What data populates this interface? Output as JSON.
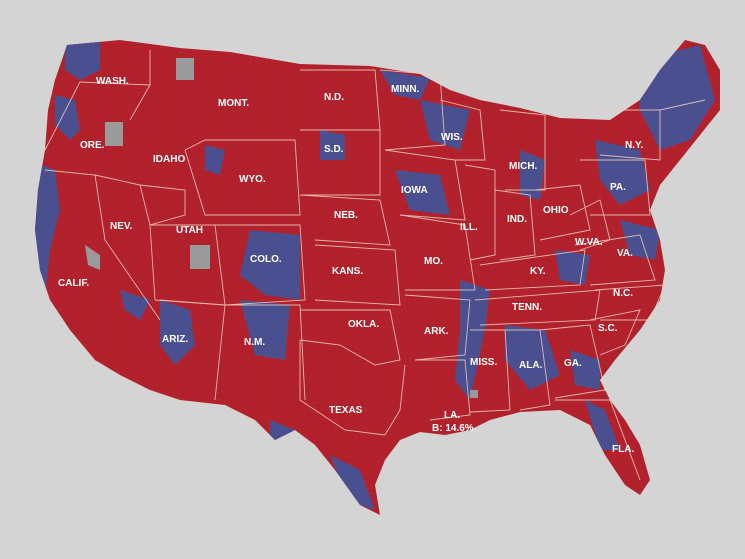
{
  "map": {
    "colors": {
      "background": "#d4d4d4",
      "majority": "#b3222c",
      "minority": "#4a4f8f",
      "no_data": "#9a9a9a",
      "border": "#f0d0c0"
    },
    "state_labels": {
      "wash": "WASH.",
      "ore": "ORE.",
      "calif": "CALIF.",
      "nev": "NEV.",
      "idaho": "IDAHO",
      "mont": "MONT.",
      "wyo": "WYO.",
      "utah": "UTAH",
      "colo": "COLO.",
      "ariz": "ARIZ.",
      "nm": "N.M.",
      "nd": "N.D.",
      "sd": "S.D.",
      "neb": "NEB.",
      "kans": "KANS.",
      "okla": "OKLA.",
      "texas": "TEXAS",
      "minn": "MINN.",
      "iowa": "IOWA",
      "mo": "MO.",
      "ark": "ARK.",
      "la": "LA.",
      "wis": "WIS.",
      "ill": "ILL.",
      "mich": "MICH.",
      "ind": "IND.",
      "ohio": "OHIO",
      "ky": "KY.",
      "tenn": "TENN.",
      "miss": "MISS.",
      "ala": "ALA.",
      "ga": "GA.",
      "fla": "FLA.",
      "sc": "S.C.",
      "nc": "N.C.",
      "va": "VA.",
      "wva": "W.VA.",
      "pa": "PA.",
      "ny": "N.Y."
    },
    "annotation": "B: 14.6%"
  }
}
